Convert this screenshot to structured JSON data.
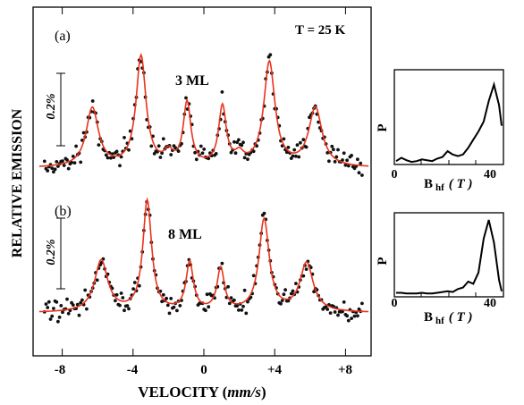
{
  "chart_data": [
    {
      "type": "scatter",
      "title": "",
      "xlabel": "VELOCITY",
      "xlabel_unit": "mm/s",
      "ylabel": "RELATIVE EMISSION",
      "xlim": [
        -9.5,
        9.5
      ],
      "x_ticks": [
        -8,
        -4,
        0,
        4,
        8
      ],
      "x_tick_labels": [
        "-8",
        "-4",
        "0",
        "+4",
        "+8"
      ],
      "temperature_label": "T = 25 K",
      "grid": false,
      "panels": [
        {
          "label": "(a)",
          "sample": "3 ML",
          "scale_bar": "0.2%",
          "baseline": 0,
          "fit_color": "#e8341c",
          "lines": [
            {
              "x": -6.3,
              "depth": 0.6,
              "w": 0.42
            },
            {
              "x": -3.55,
              "depth": 1.12,
              "w": 0.34
            },
            {
              "x": -0.95,
              "depth": 0.64,
              "w": 0.26
            },
            {
              "x": 1.05,
              "depth": 0.6,
              "w": 0.26
            },
            {
              "x": 3.7,
              "depth": 1.06,
              "w": 0.38
            },
            {
              "x": 6.3,
              "depth": 0.6,
              "w": 0.45
            },
            {
              "x": -2.0,
              "depth": 0.12,
              "w": 0.3
            },
            {
              "x": 2.0,
              "depth": 0.1,
              "w": 0.3
            }
          ]
        },
        {
          "label": "(b)",
          "sample": "8 ML",
          "scale_bar": "0.2%",
          "baseline": 0,
          "fit_color": "#e8341c",
          "lines": [
            {
              "x": -5.8,
              "depth": 0.55,
              "w": 0.45
            },
            {
              "x": -3.2,
              "depth": 1.18,
              "w": 0.3
            },
            {
              "x": -0.8,
              "depth": 0.52,
              "w": 0.25
            },
            {
              "x": 0.95,
              "depth": 0.45,
              "w": 0.25
            },
            {
              "x": 3.4,
              "depth": 0.98,
              "w": 0.35
            },
            {
              "x": 5.8,
              "depth": 0.52,
              "w": 0.45
            }
          ]
        }
      ]
    },
    {
      "type": "line",
      "panel": "(a) inset",
      "xlabel": "B hf (T)",
      "ylabel": "P",
      "x_tick_labels": [
        "0",
        "40"
      ],
      "x": [
        0,
        2,
        4,
        6,
        8,
        10,
        12,
        14,
        16,
        18,
        20,
        22,
        24,
        26,
        28,
        30,
        32,
        34,
        36,
        38,
        40,
        41
      ],
      "y": [
        0.02,
        0.06,
        0.03,
        0.01,
        0.02,
        0.04,
        0.03,
        0.02,
        0.05,
        0.07,
        0.14,
        0.1,
        0.08,
        0.1,
        0.18,
        0.28,
        0.38,
        0.5,
        0.75,
        0.95,
        0.7,
        0.45
      ]
    },
    {
      "type": "line",
      "panel": "(b) inset",
      "xlabel": "B hf (T)",
      "ylabel": "P",
      "x_tick_labels": [
        "0",
        "40"
      ],
      "x": [
        0,
        2,
        4,
        6,
        8,
        10,
        12,
        14,
        16,
        18,
        20,
        22,
        24,
        26,
        28,
        30,
        32,
        34,
        36,
        38,
        40,
        41
      ],
      "y": [
        0.03,
        0.03,
        0.02,
        0.02,
        0.02,
        0.03,
        0.02,
        0.02,
        0.03,
        0.04,
        0.05,
        0.04,
        0.08,
        0.1,
        0.18,
        0.15,
        0.3,
        0.75,
        1.0,
        0.7,
        0.2,
        0.05
      ]
    }
  ],
  "text": {
    "panel_a_label": "(a)",
    "panel_b_label": "(b)",
    "sample_a": "3 ML",
    "sample_b": "8 ML",
    "temperature": "T = 25 K",
    "scale_a": "0.2%",
    "scale_b": "0.2%",
    "ylabel": "RELATIVE EMISSION",
    "xlabel_main": "VELOCITY (",
    "xlabel_unit": "mm/s",
    "xlabel_close": ")",
    "tick_m8": "-8",
    "tick_m4": "-4",
    "tick_0": "0",
    "tick_p4": "+4",
    "tick_p8": "+8",
    "inset_p": "P",
    "inset_b": "B",
    "inset_hf": "hf",
    "inset_unit": "( T )",
    "inset_0": "0",
    "inset_40": "40"
  }
}
